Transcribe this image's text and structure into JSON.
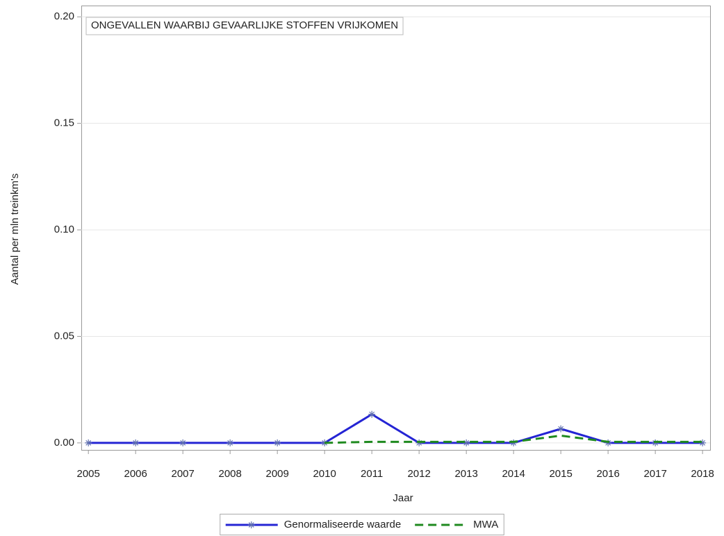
{
  "chart_data": {
    "type": "line",
    "title": "ONGEVALLEN WAARBIJ GEVAARLIJKE STOFFEN VRIJKOMEN",
    "x_label": "Jaar",
    "y_label": "Aantal per mln treinkm's",
    "x": [
      2005,
      2006,
      2007,
      2008,
      2009,
      2010,
      2011,
      2012,
      2013,
      2014,
      2015,
      2016,
      2017,
      2018
    ],
    "series": [
      {
        "name": "Genormaliseerde waarde",
        "color": "#2424d4",
        "dash": false,
        "marker": true,
        "values": [
          0,
          0,
          0,
          0,
          0,
          0,
          0.0134,
          0,
          0,
          0,
          0.0066,
          0,
          0,
          0
        ]
      },
      {
        "name": "MWA",
        "color": "#1f8a1f",
        "dash": true,
        "marker": false,
        "values": [
          null,
          null,
          null,
          null,
          null,
          0,
          0.0005,
          0.0005,
          0.0005,
          0.0005,
          0.0034,
          0.0005,
          0.0005,
          0.0005
        ]
      }
    ],
    "xlim": [
      2004.85,
      2018.16
    ],
    "ylim": [
      -0.0033,
      0.2053
    ],
    "xticks": [
      2005,
      2006,
      2007,
      2008,
      2009,
      2010,
      2011,
      2012,
      2013,
      2014,
      2015,
      2016,
      2017,
      2018
    ],
    "yticks": [
      {
        "value": 0,
        "label": "0.00"
      },
      {
        "value": 0.05,
        "label": "0.05"
      },
      {
        "value": 0.1,
        "label": "0.10"
      },
      {
        "value": 0.15,
        "label": "0.15"
      },
      {
        "value": 0.2,
        "label": "0.20"
      }
    ],
    "grid": true,
    "legend": "bottom"
  }
}
